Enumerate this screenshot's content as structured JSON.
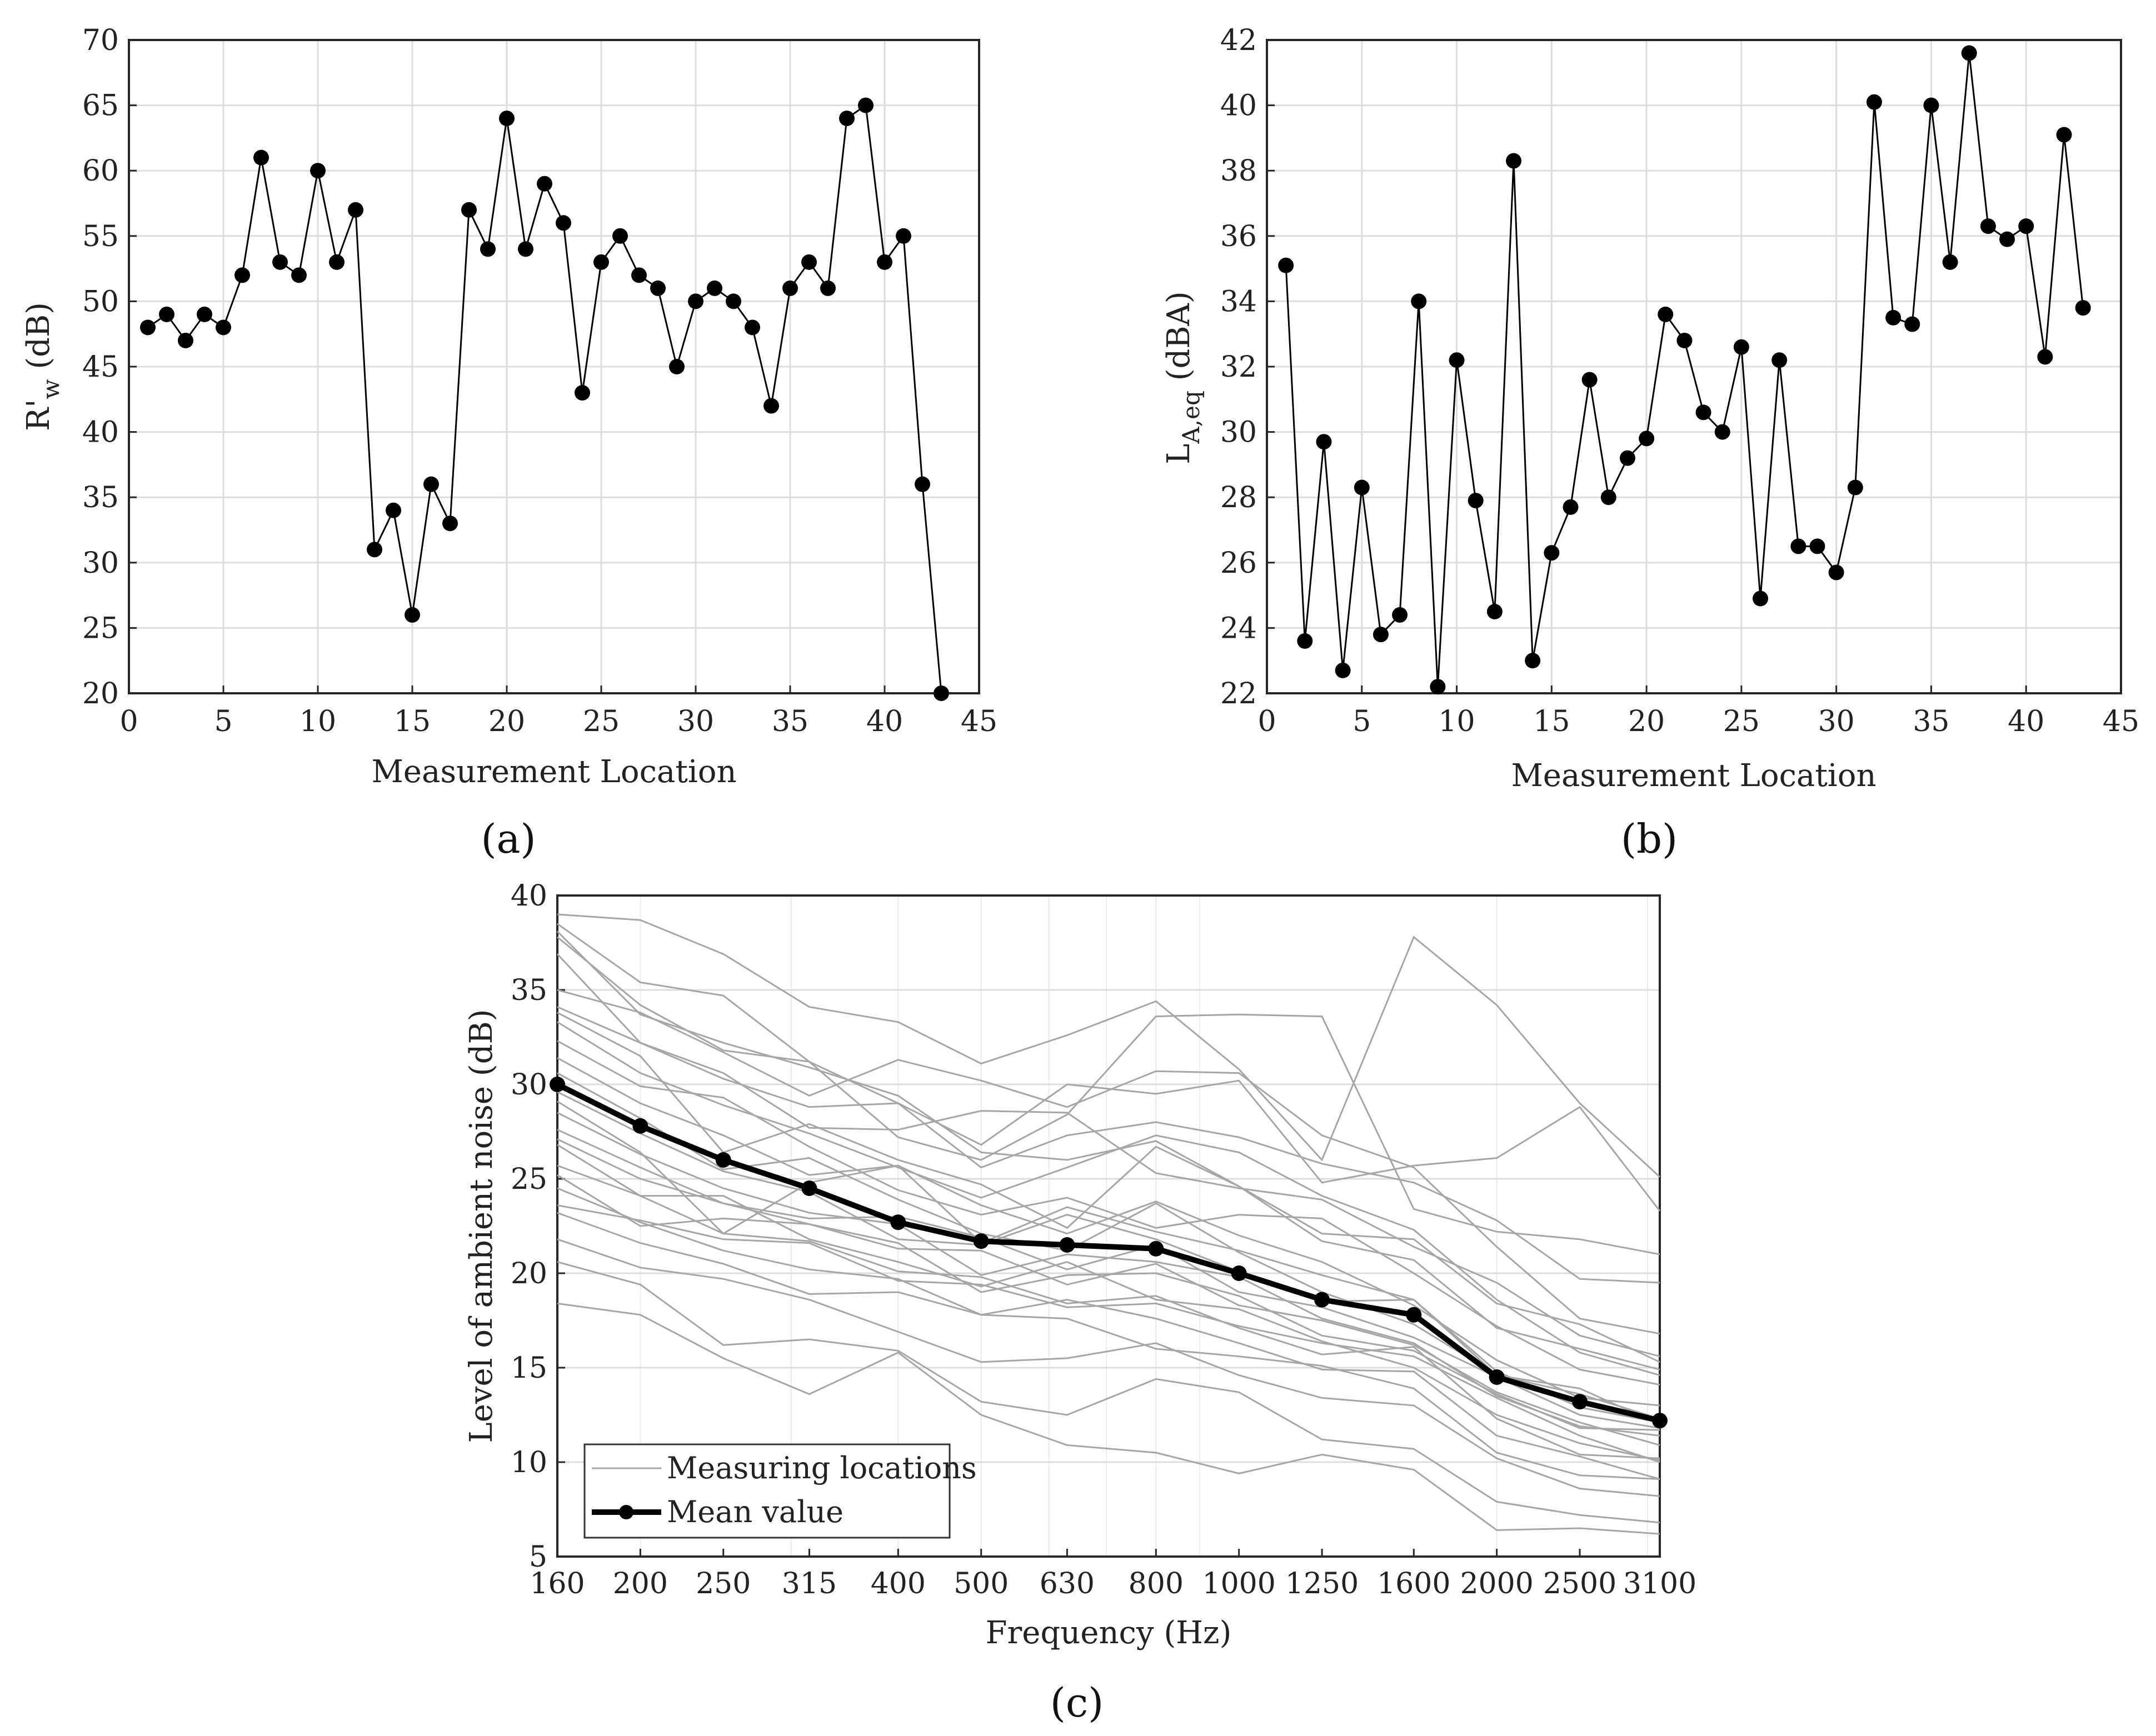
{
  "chart_data": [
    {
      "type": "line",
      "panel_label": "(a)",
      "title": "",
      "xlabel": "Measurement Location",
      "ylabel": "R'w (dB)",
      "ylabel_main": "R'",
      "ylabel_sub": "w",
      "ylabel_unit": " (dB)",
      "xlim": [
        0,
        45
      ],
      "ylim": [
        20,
        70
      ],
      "xticks": [
        0,
        5,
        10,
        15,
        20,
        25,
        30,
        35,
        40,
        45
      ],
      "yticks": [
        20,
        25,
        30,
        35,
        40,
        45,
        50,
        55,
        60,
        65,
        70
      ],
      "x": [
        1,
        2,
        3,
        4,
        5,
        6,
        7,
        8,
        9,
        10,
        11,
        12,
        13,
        14,
        15,
        16,
        17,
        18,
        19,
        20,
        21,
        22,
        23,
        24,
        25,
        26,
        27,
        28,
        29,
        30,
        31,
        32,
        33,
        34,
        35,
        36,
        37,
        38,
        39,
        40,
        41,
        42,
        43
      ],
      "values": [
        48,
        49,
        47,
        49,
        48,
        52,
        61,
        53,
        52,
        60,
        53,
        57,
        31,
        34,
        26,
        36,
        33,
        57,
        54,
        64,
        54,
        59,
        56,
        43,
        53,
        55,
        52,
        51,
        45,
        50,
        51,
        50,
        48,
        42,
        51,
        53,
        51,
        64,
        65,
        53,
        55,
        36,
        20
      ]
    },
    {
      "type": "line",
      "panel_label": "(b)",
      "title": "",
      "xlabel": "Measurement Location",
      "ylabel": "LA,eq (dBA)",
      "ylabel_main": "L",
      "ylabel_sub": "A,eq",
      "ylabel_unit": " (dBA)",
      "xlim": [
        0,
        45
      ],
      "ylim": [
        22,
        42
      ],
      "xticks": [
        0,
        5,
        10,
        15,
        20,
        25,
        30,
        35,
        40,
        45
      ],
      "yticks": [
        22,
        24,
        26,
        28,
        30,
        32,
        34,
        36,
        38,
        40,
        42
      ],
      "x": [
        1,
        2,
        3,
        4,
        5,
        6,
        7,
        8,
        9,
        10,
        11,
        12,
        13,
        14,
        15,
        16,
        17,
        18,
        19,
        20,
        21,
        22,
        23,
        24,
        25,
        26,
        27,
        28,
        29,
        30,
        31,
        32,
        33,
        34,
        35,
        36,
        37,
        38,
        39,
        40,
        41,
        42,
        43
      ],
      "values": [
        35.1,
        23.6,
        29.7,
        22.7,
        28.3,
        23.8,
        24.4,
        34.0,
        22.2,
        32.2,
        27.9,
        24.5,
        38.3,
        23.0,
        26.3,
        27.7,
        31.6,
        28.0,
        29.2,
        29.8,
        33.6,
        32.8,
        30.6,
        30.0,
        32.6,
        24.9,
        32.2,
        26.5,
        26.5,
        25.7,
        28.3,
        40.1,
        33.5,
        33.3,
        40.0,
        35.2,
        41.6,
        36.3,
        35.9,
        36.3,
        32.3,
        39.1,
        33.8
      ]
    },
    {
      "type": "line",
      "panel_label": "(c)",
      "title": "",
      "xlabel": "Frequency (Hz)",
      "ylabel": "Level of ambient noise  (dB)",
      "ylim": [
        5,
        40
      ],
      "yticks": [
        5,
        10,
        15,
        20,
        25,
        30,
        35,
        40
      ],
      "categories": [
        "160",
        "200",
        "250",
        "315",
        "400",
        "500",
        "630",
        "800",
        "1000",
        "1250",
        "1600",
        "2000",
        "2500",
        "3100"
      ],
      "legend": [
        "Measuring locations",
        "Mean value"
      ],
      "legend_position": "bottom-left",
      "series": [
        {
          "name": "Mean value",
          "values": [
            30.0,
            27.8,
            26.0,
            24.5,
            22.7,
            21.7,
            21.5,
            21.3,
            20.0,
            18.6,
            17.8,
            14.5,
            13.2,
            12.2
          ]
        },
        {
          "name": "Measuring locations",
          "values": [
            39.0,
            38.7,
            36.9,
            34.1,
            33.3,
            31.1,
            32.6,
            34.4,
            30.8,
            26.0,
            37.8,
            34.2,
            29.0,
            25.1
          ]
        },
        {
          "name": "Measuring locations",
          "values": [
            38.5,
            35.4,
            34.7,
            31.2,
            29.0,
            26.8,
            30.0,
            29.5,
            30.2,
            24.8,
            25.7,
            26.1,
            28.8,
            23.3
          ]
        },
        {
          "name": "Measuring locations",
          "values": [
            37.8,
            34.2,
            31.8,
            31.2,
            27.2,
            26.0,
            28.4,
            33.6,
            33.7,
            33.6,
            23.4,
            22.2,
            21.8,
            21.0
          ]
        },
        {
          "name": "Measuring locations",
          "values": [
            36.9,
            32.2,
            30.3,
            28.8,
            29.0,
            25.6,
            27.3,
            28.0,
            27.2,
            25.8,
            24.8,
            22.8,
            19.7,
            19.5
          ]
        },
        {
          "name": "Measuring locations",
          "values": [
            35.0,
            33.8,
            31.7,
            29.4,
            31.3,
            30.2,
            28.8,
            30.7,
            30.6,
            27.3,
            25.6,
            21.4,
            17.6,
            16.8
          ]
        },
        {
          "name": "Measuring locations",
          "values": [
            34.1,
            32.2,
            30.6,
            27.7,
            27.6,
            28.6,
            28.5,
            25.3,
            24.5,
            23.9,
            21.4,
            19.5,
            16.7,
            15.6
          ]
        },
        {
          "name": "Measuring locations",
          "values": [
            33.3,
            30.6,
            28.9,
            27.4,
            25.6,
            24.0,
            25.6,
            27.3,
            26.4,
            24.1,
            22.3,
            18.6,
            15.8,
            14.6
          ]
        },
        {
          "name": "Measuring locations",
          "values": [
            32.3,
            29.9,
            29.3,
            26.7,
            24.4,
            23.1,
            24.0,
            22.4,
            23.1,
            22.9,
            20.0,
            17.2,
            14.9,
            14.1
          ]
        },
        {
          "name": "Measuring locations",
          "values": [
            31.4,
            29.0,
            27.3,
            25.2,
            25.7,
            23.6,
            22.1,
            23.8,
            22.0,
            20.6,
            18.3,
            15.4,
            13.4,
            13.0
          ]
        },
        {
          "name": "Measuring locations",
          "values": [
            30.6,
            28.2,
            25.5,
            26.1,
            23.9,
            22.1,
            21.2,
            23.7,
            21.1,
            19.0,
            17.3,
            14.6,
            13.6,
            12.3
          ]
        },
        {
          "name": "Measuring locations",
          "values": [
            29.6,
            27.4,
            25.4,
            24.3,
            21.8,
            21.5,
            23.1,
            21.8,
            20.1,
            18.5,
            18.6,
            14.8,
            12.9,
            12.1
          ]
        },
        {
          "name": "Measuring locations",
          "values": [
            28.5,
            26.3,
            24.5,
            23.2,
            22.6,
            19.9,
            21.0,
            20.6,
            19.8,
            17.6,
            16.3,
            13.5,
            11.9,
            11.4
          ]
        },
        {
          "name": "Measuring locations",
          "values": [
            27.6,
            25.6,
            23.7,
            22.6,
            21.3,
            21.2,
            19.4,
            20.5,
            18.3,
            17.5,
            16.2,
            13.7,
            12.1,
            10.9
          ]
        },
        {
          "name": "Measuring locations",
          "values": [
            26.8,
            24.1,
            24.1,
            21.8,
            20.6,
            19.3,
            20.6,
            18.6,
            18.1,
            16.4,
            15.0,
            12.5,
            11.0,
            10.1
          ]
        },
        {
          "name": "Measuring locations",
          "values": [
            25.7,
            24.1,
            22.1,
            21.7,
            20.1,
            19.8,
            18.4,
            18.8,
            17.1,
            15.7,
            16.1,
            12.3,
            10.4,
            10.2
          ]
        },
        {
          "name": "Measuring locations",
          "values": [
            24.5,
            22.7,
            21.2,
            20.2,
            19.7,
            17.8,
            18.6,
            17.6,
            16.3,
            14.9,
            14.8,
            11.4,
            10.3,
            9.1
          ]
        },
        {
          "name": "Measuring locations",
          "values": [
            23.2,
            21.6,
            20.5,
            18.9,
            19.0,
            17.8,
            17.6,
            16.0,
            15.6,
            15.1,
            13.9,
            10.5,
            9.3,
            9.1
          ]
        },
        {
          "name": "Measuring locations",
          "values": [
            21.8,
            20.3,
            19.7,
            18.6,
            16.9,
            15.3,
            15.5,
            16.3,
            14.6,
            13.4,
            13.0,
            10.2,
            8.6,
            8.2
          ]
        },
        {
          "name": "Measuring locations",
          "values": [
            20.6,
            19.4,
            16.2,
            16.5,
            15.9,
            13.2,
            12.5,
            14.4,
            13.7,
            11.2,
            10.7,
            7.9,
            7.2,
            6.8
          ]
        },
        {
          "name": "Measuring locations",
          "values": [
            18.4,
            17.8,
            15.5,
            13.6,
            15.8,
            12.5,
            10.9,
            10.5,
            9.4,
            10.4,
            9.6,
            6.4,
            6.5,
            6.2
          ]
        },
        {
          "name": "Measuring locations",
          "values": [
            29.1,
            26.4,
            22.1,
            24.8,
            25.7,
            21.6,
            23.5,
            22.2,
            21.2,
            19.9,
            18.6,
            14.6,
            13.9,
            12.0
          ]
        },
        {
          "name": "Measuring locations",
          "values": [
            27.1,
            25.0,
            23.7,
            22.9,
            23.0,
            21.9,
            20.2,
            21.5,
            19.0,
            18.2,
            16.6,
            14.5,
            12.5,
            11.8
          ]
        },
        {
          "name": "Measuring locations",
          "values": [
            25.2,
            22.5,
            22.9,
            22.6,
            21.6,
            19.0,
            19.9,
            20.0,
            18.8,
            16.7,
            15.9,
            13.6,
            11.8,
            11.7
          ]
        },
        {
          "name": "Measuring locations",
          "values": [
            23.6,
            22.8,
            21.8,
            21.6,
            19.6,
            19.4,
            18.2,
            18.4,
            17.2,
            16.3,
            15.6,
            13.4,
            11.4,
            10.0
          ]
        },
        {
          "name": "Measuring locations",
          "values": [
            33.8,
            31.5,
            26.4,
            27.9,
            26.0,
            24.7,
            22.4,
            26.7,
            24.6,
            21.7,
            20.7,
            17.1,
            16.0,
            14.9
          ]
        },
        {
          "name": "Measuring locations",
          "values": [
            38.1,
            33.7,
            32.2,
            30.9,
            29.4,
            26.4,
            26.0,
            27.0,
            24.6,
            22.1,
            21.8,
            18.4,
            17.3,
            15.3
          ]
        }
      ]
    }
  ]
}
